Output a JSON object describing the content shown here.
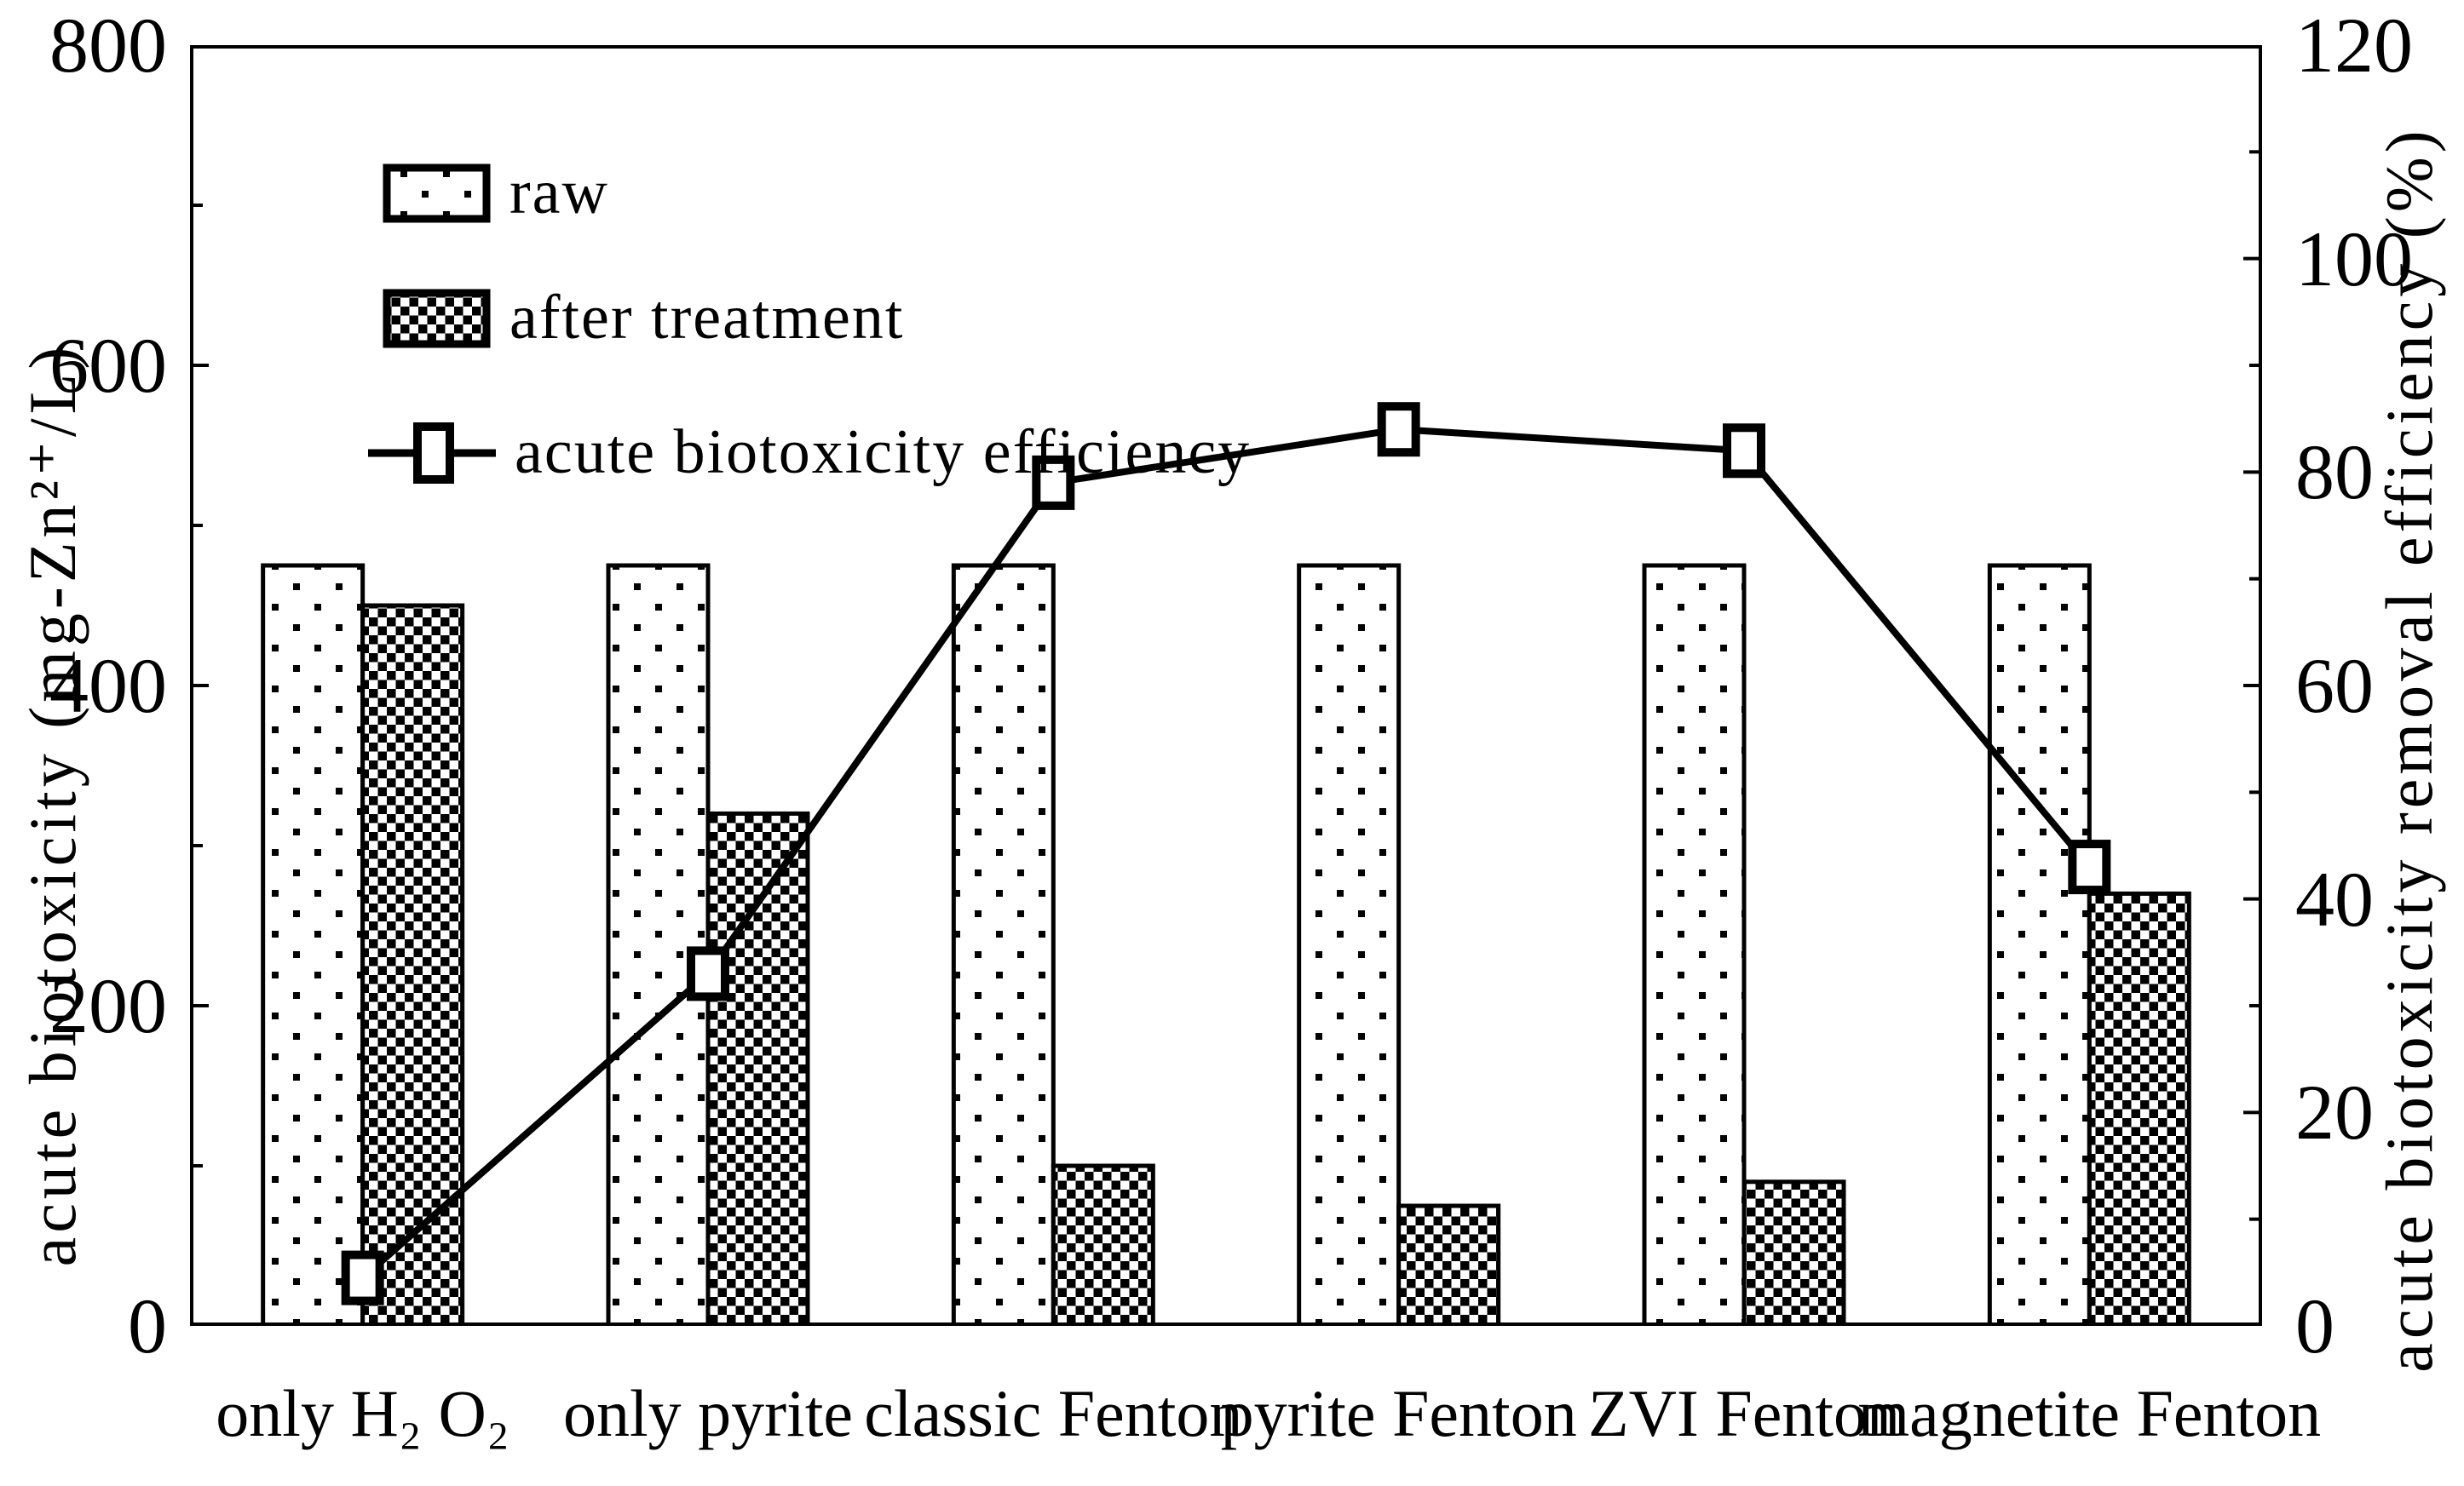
{
  "chart_data": {
    "type": "bar",
    "title": "",
    "categories": [
      "only H₂  O₂",
      "only pyrite",
      "classic Fenton",
      "pyrite Fenton",
      "ZVI Fenton",
      "magnetite Fenton"
    ],
    "series": [
      {
        "name": "raw",
        "type": "bar",
        "pattern": "dots",
        "axis": "left",
        "values": [
          475,
          475,
          475,
          475,
          475,
          475
        ]
      },
      {
        "name": "after treatment",
        "type": "bar",
        "pattern": "checker",
        "axis": "left",
        "values": [
          450,
          320,
          100,
          75,
          90,
          270
        ]
      },
      {
        "name": "acute biotoxicity efficiency",
        "type": "line",
        "marker": "open-square",
        "axis": "right",
        "values": [
          4.5,
          33,
          79,
          84,
          82,
          43
        ]
      }
    ],
    "axes": {
      "left": {
        "label": "acute biotoxicity (mg-Zn²⁺/L)",
        "min": 0,
        "max": 800,
        "major_tick": 200,
        "minor_tick": 100,
        "tick_labels": [
          "0",
          "200",
          "400",
          "600",
          "800"
        ]
      },
      "right": {
        "label": "acute biotoxicity removal efficiency (%)",
        "min": 0,
        "max": 120,
        "major_tick": 20,
        "minor_tick": 10,
        "tick_labels": [
          "0",
          "20",
          "40",
          "60",
          "80",
          "100",
          "120"
        ]
      }
    },
    "legend_position": "upper-left-inside",
    "grid": false,
    "colors": {
      "foreground": "#000000",
      "background": "#ffffff"
    }
  }
}
